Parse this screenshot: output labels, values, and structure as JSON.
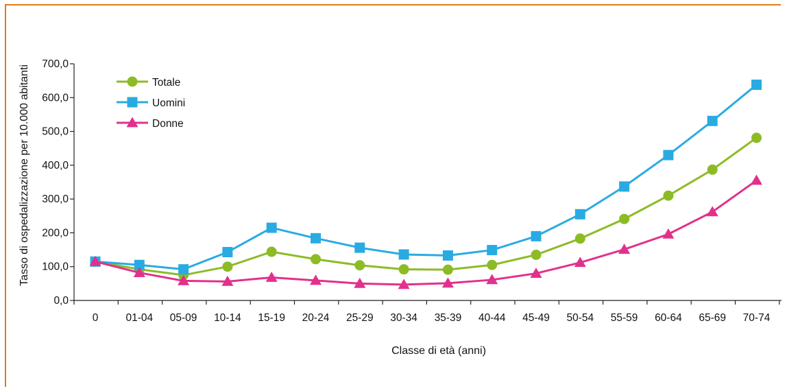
{
  "chart_data": {
    "type": "line",
    "xlabel": "Classe di età (anni)",
    "ylabel": "Tasso di ospedalizzazione per 10.000 abitanti",
    "ylim": [
      0,
      700
    ],
    "yticks": [
      0,
      100,
      200,
      300,
      400,
      500,
      600,
      700
    ],
    "ytick_labels": [
      "0,0",
      "100,0",
      "200,0",
      "300,0",
      "400,0",
      "500,0",
      "600,0",
      "700,0"
    ],
    "categories": [
      "0",
      "01-04",
      "05-09",
      "10-14",
      "15-19",
      "20-24",
      "25-29",
      "30-34",
      "35-39",
      "40-44",
      "45-49",
      "50-54",
      "55-59",
      "60-64",
      "65-69",
      "70-74"
    ],
    "legend_position": "top-left",
    "grid": false,
    "series": [
      {
        "name": "Totale",
        "color": "#8cbb26",
        "marker": "circle",
        "values": [
          115,
          92,
          75,
          100,
          144,
          122,
          104,
          92,
          91,
          105,
          135,
          183,
          241,
          310,
          387,
          481
        ]
      },
      {
        "name": "Uomini",
        "color": "#29abe2",
        "marker": "square",
        "values": [
          115,
          105,
          92,
          143,
          215,
          184,
          156,
          136,
          133,
          149,
          190,
          255,
          337,
          430,
          531,
          638
        ]
      },
      {
        "name": "Donne",
        "color": "#e2308c",
        "marker": "triangle",
        "values": [
          115,
          82,
          58,
          56,
          68,
          59,
          50,
          47,
          51,
          61,
          80,
          112,
          151,
          196,
          262,
          355
        ]
      }
    ]
  }
}
